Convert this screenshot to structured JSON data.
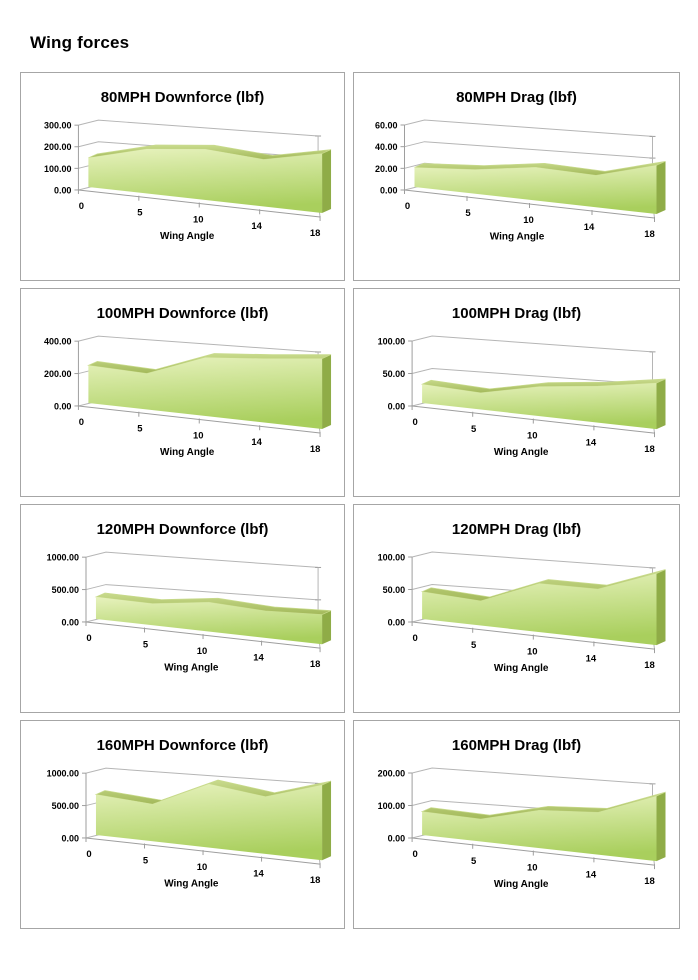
{
  "page": {
    "title": "Wing forces"
  },
  "colors": {
    "chart_border": "#a6a6a6",
    "axis_line": "#9e9e9e",
    "gridline": "#b5b5b5",
    "area_face_light": "#e7f2bd",
    "area_face_dark": "#a9cf5d",
    "area_top": "#a3b95a",
    "area_top_highlight": "#c9db8d",
    "area_side": "#8fac47",
    "text": "#000000"
  },
  "chart_data": [
    {
      "type": "area",
      "style": "excel-3d-area",
      "legend": "none",
      "grid": "on",
      "title": "80MPH Downforce (lbf)",
      "xlabel": "Wing Angle",
      "categories": [
        "0",
        "5",
        "10",
        "14",
        "18"
      ],
      "values": [
        135,
        185,
        192,
        163,
        190
      ],
      "ylim": [
        0,
        300
      ],
      "yticks": [
        0,
        100,
        200,
        300
      ],
      "ytick_labels": [
        "0.00",
        "100.00",
        "200.00",
        "300.00"
      ]
    },
    {
      "type": "area",
      "style": "excel-3d-area",
      "legend": "none",
      "grid": "on",
      "title": "80MPH Drag (lbf)",
      "xlabel": "Wing Angle",
      "categories": [
        "0",
        "5",
        "10",
        "14",
        "18"
      ],
      "values": [
        18,
        20,
        25,
        22,
        31
      ],
      "ylim": [
        0,
        60
      ],
      "yticks": [
        0,
        20,
        40,
        60
      ],
      "ytick_labels": [
        "0.00",
        "20.00",
        "40.00",
        "60.00"
      ]
    },
    {
      "type": "area",
      "style": "excel-3d-area",
      "legend": "none",
      "grid": "on",
      "title": "100MPH Downforce (lbf)",
      "xlabel": "Wing Angle",
      "categories": [
        "0",
        "5",
        "10",
        "14",
        "18"
      ],
      "values": [
        232,
        200,
        295,
        295,
        300
      ],
      "ylim": [
        0,
        400
      ],
      "yticks": [
        0,
        200,
        400
      ],
      "ytick_labels": [
        "0.00",
        "200.00",
        "400.00"
      ]
    },
    {
      "type": "area",
      "style": "excel-3d-area",
      "legend": "none",
      "grid": "on",
      "title": "100MPH Drag (lbf)",
      "xlabel": "Wing Angle",
      "categories": [
        "0",
        "5",
        "10",
        "14",
        "18"
      ],
      "values": [
        29,
        23,
        37,
        42,
        49
      ],
      "ylim": [
        0,
        100
      ],
      "yticks": [
        0,
        50,
        100
      ],
      "ytick_labels": [
        "0.00",
        "50.00",
        "100.00"
      ]
    },
    {
      "type": "area",
      "style": "excel-3d-area",
      "legend": "none",
      "grid": "on",
      "title": "120MPH Downforce (lbf)",
      "xlabel": "Wing Angle",
      "categories": [
        "0",
        "5",
        "10",
        "14",
        "18"
      ],
      "values": [
        340,
        300,
        370,
        310,
        315
      ],
      "ylim": [
        0,
        1000
      ],
      "yticks": [
        0,
        500,
        1000
      ],
      "ytick_labels": [
        "0.00",
        "500.00",
        "1000.00"
      ]
    },
    {
      "type": "area",
      "style": "excel-3d-area",
      "legend": "none",
      "grid": "on",
      "title": "120MPH Drag (lbf)",
      "xlabel": "Wing Angle",
      "categories": [
        "0",
        "5",
        "10",
        "14",
        "18"
      ],
      "values": [
        42,
        34,
        61,
        57,
        76
      ],
      "ylim": [
        0,
        100
      ],
      "yticks": [
        0,
        50,
        100
      ],
      "ytick_labels": [
        "0.00",
        "50.00",
        "100.00"
      ]
    },
    {
      "type": "area",
      "style": "excel-3d-area",
      "legend": "none",
      "grid": "on",
      "title": "160MPH Downforce (lbf)",
      "xlabel": "Wing Angle",
      "categories": [
        "0",
        "5",
        "10",
        "14",
        "18"
      ],
      "values": [
        625,
        515,
        800,
        660,
        800
      ],
      "ylim": [
        0,
        1000
      ],
      "yticks": [
        0,
        500,
        1000
      ],
      "ytick_labels": [
        "0.00",
        "500.00",
        "1000.00"
      ]
    },
    {
      "type": "area",
      "style": "excel-3d-area",
      "legend": "none",
      "grid": "on",
      "title": "160MPH Drag (lbf)",
      "xlabel": "Wing Angle",
      "categories": [
        "0",
        "5",
        "10",
        "14",
        "18"
      ],
      "values": [
        72,
        62,
        95,
        97,
        138
      ],
      "ylim": [
        0,
        200
      ],
      "yticks": [
        0,
        100,
        200
      ],
      "ytick_labels": [
        "0.00",
        "100.00",
        "200.00"
      ]
    }
  ]
}
